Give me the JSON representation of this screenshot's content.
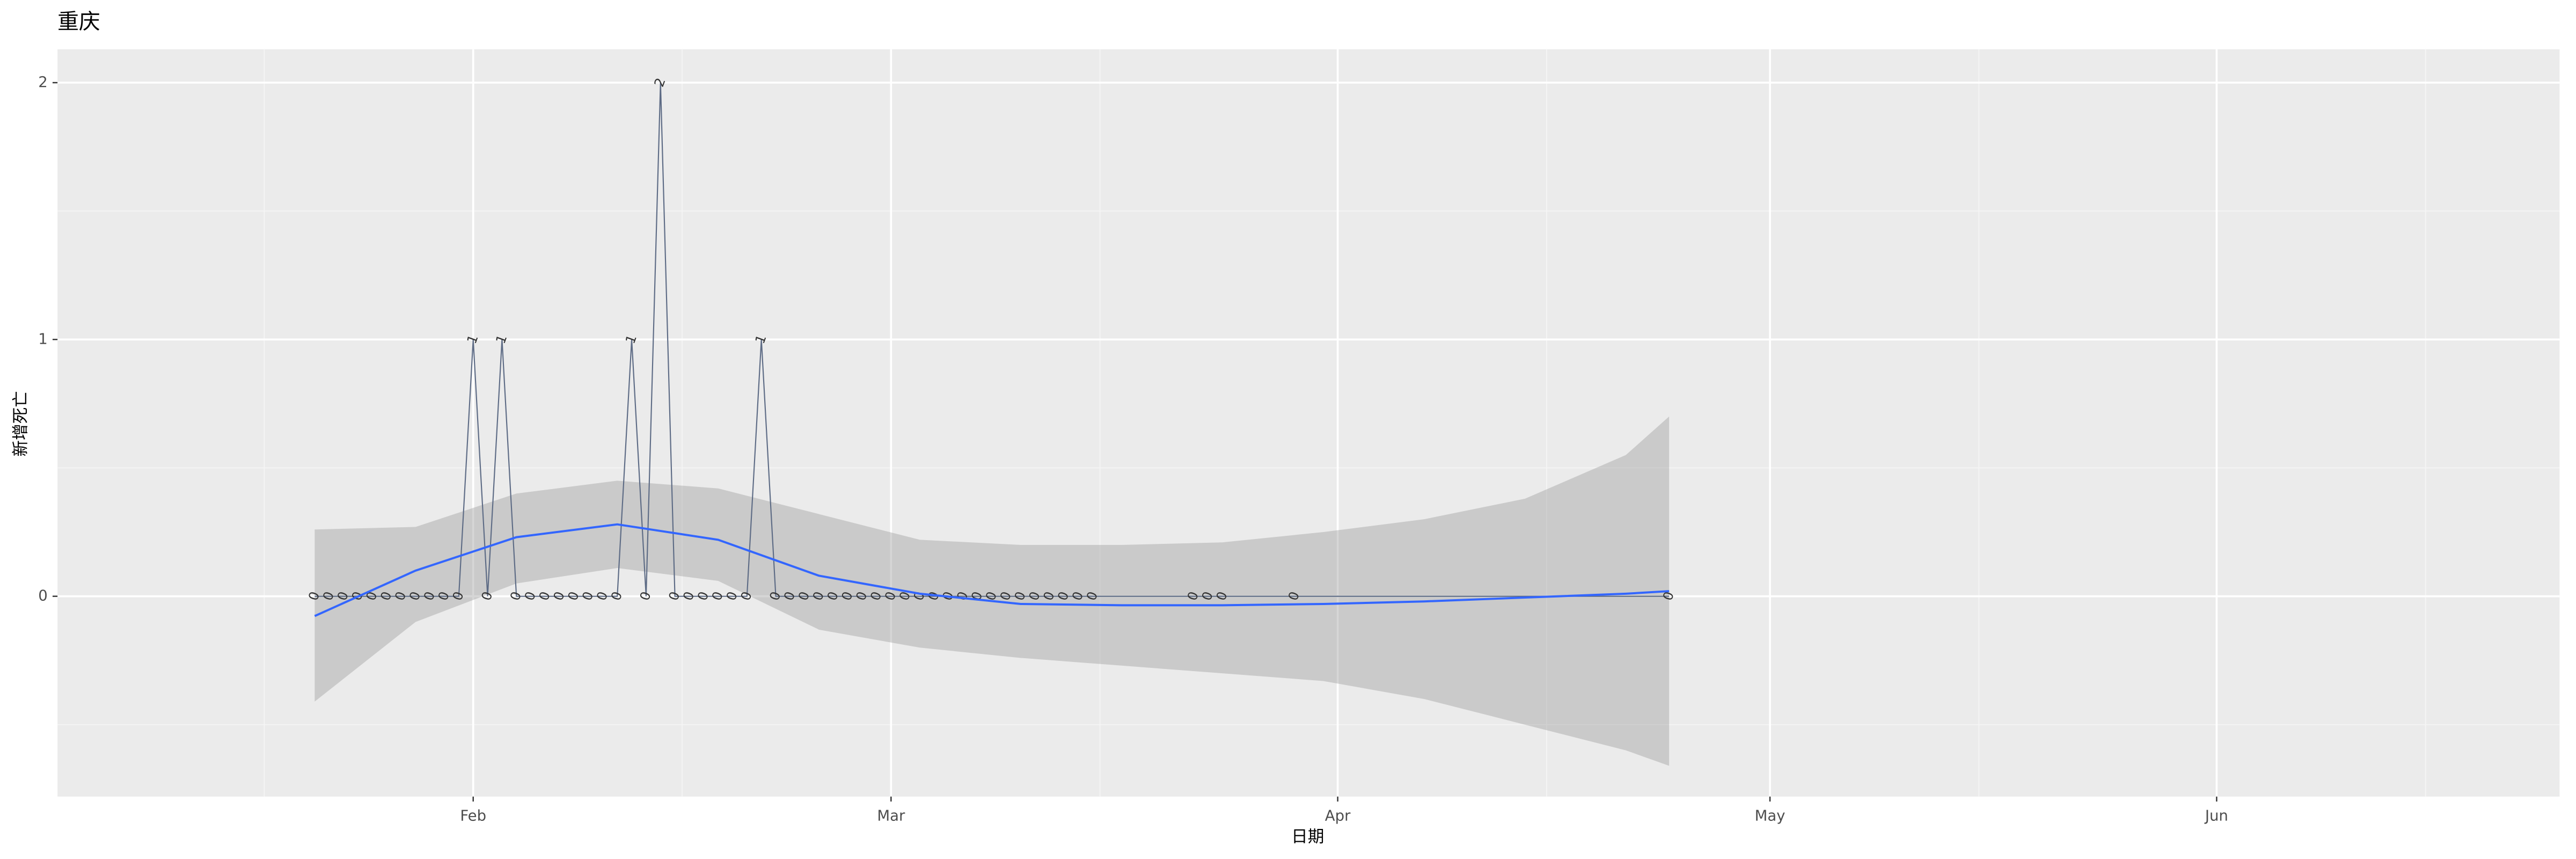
{
  "chart_data": {
    "type": "line",
    "title": "重庆",
    "xlabel": "日期",
    "ylabel": "新增死亡",
    "x": [
      21,
      22,
      23,
      24,
      25,
      26,
      27,
      28,
      29,
      30,
      31,
      32,
      33,
      34,
      35,
      36,
      37,
      38,
      39,
      40,
      41,
      42,
      43,
      44,
      45,
      46,
      47,
      48,
      49,
      50,
      51,
      52,
      53,
      54,
      55,
      56,
      57,
      58,
      59,
      60,
      61,
      62,
      63,
      64,
      65,
      66,
      67,
      68,
      69,
      70,
      71,
      72,
      73,
      74,
      75,
      82,
      83,
      84,
      89,
      115
    ],
    "series": [
      {
        "color": "#5d6b85",
        "values": [
          0,
          0,
          0,
          0,
          0,
          0,
          0,
          0,
          0,
          0,
          0,
          1,
          0,
          1,
          0,
          0,
          0,
          0,
          0,
          0,
          0,
          0,
          1,
          0,
          2,
          0,
          0,
          0,
          0,
          0,
          0,
          1,
          0,
          0,
          0,
          0,
          0,
          0,
          0,
          0,
          0,
          0,
          0,
          0,
          0,
          0,
          0,
          0,
          0,
          0,
          0,
          0,
          0,
          0,
          0,
          0,
          0,
          0,
          0,
          0
        ]
      }
    ],
    "smooth": {
      "color": "#3366ff",
      "fill": "#999999",
      "x": [
        21,
        28,
        35,
        42,
        49,
        56,
        63,
        70,
        77,
        84,
        91,
        98,
        105,
        112,
        115
      ],
      "values": [
        -0.077,
        0.1,
        0.23,
        0.28,
        0.22,
        0.08,
        0.01,
        -0.03,
        -0.035,
        -0.035,
        -0.03,
        -0.02,
        -0.005,
        0.01,
        0.02
      ],
      "upper": [
        0.26,
        0.27,
        0.4,
        0.45,
        0.42,
        0.32,
        0.22,
        0.2,
        0.2,
        0.21,
        0.25,
        0.3,
        0.38,
        0.55,
        0.7
      ],
      "lower": [
        -0.41,
        -0.1,
        0.05,
        0.11,
        0.06,
        -0.13,
        -0.2,
        -0.24,
        -0.27,
        -0.3,
        -0.33,
        -0.4,
        -0.5,
        -0.6,
        -0.66
      ]
    },
    "xlim": [
      3.15,
      176.8
    ],
    "xticks": [
      {
        "value": 32,
        "label": "Feb"
      },
      {
        "value": 61,
        "label": "Mar"
      },
      {
        "value": 92,
        "label": "Apr"
      },
      {
        "value": 122,
        "label": "May"
      },
      {
        "value": 153,
        "label": "Jun"
      }
    ],
    "ylim": [
      -0.78,
      2.13
    ],
    "yticks": [
      0,
      1,
      2
    ],
    "grid": true
  }
}
